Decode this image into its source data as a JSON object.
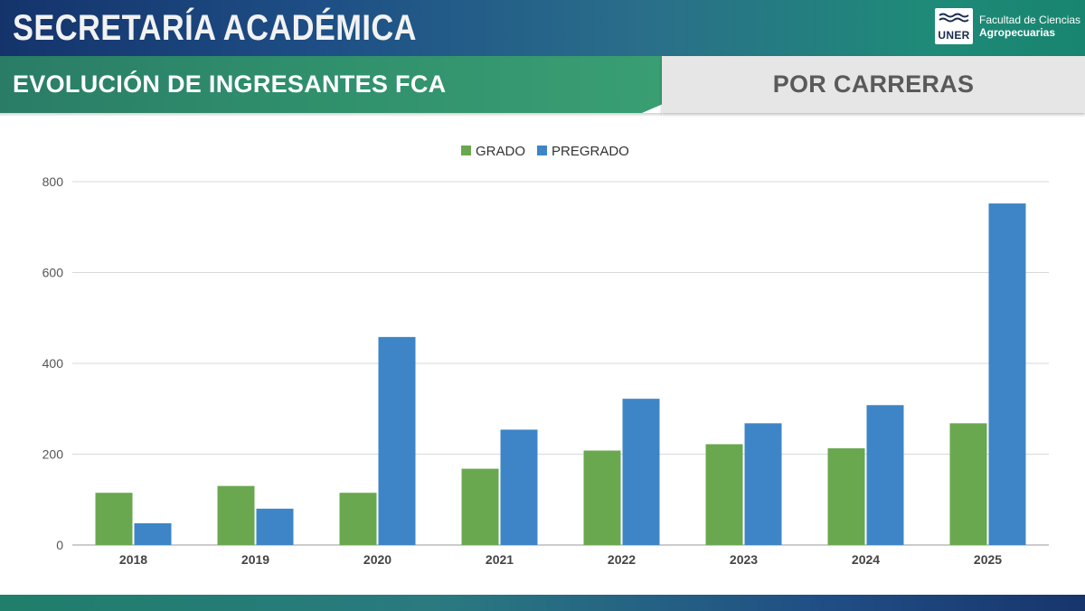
{
  "header": {
    "title": "SECRETARÍA ACADÉMICA",
    "logo_word": "UNER",
    "logo_line1": "Facultad de Ciencias",
    "logo_line2": "Agropecuarias"
  },
  "subheader": {
    "title": "EVOLUCIÓN DE INGRESANTES FCA",
    "section": "POR CARRERAS"
  },
  "colors": {
    "grado": "#6aa84f",
    "pregrado": "#3d85c6"
  },
  "chart_data": {
    "type": "bar",
    "categories": [
      "2018",
      "2019",
      "2020",
      "2021",
      "2022",
      "2023",
      "2024",
      "2025"
    ],
    "series": [
      {
        "name": "GRADO",
        "values": [
          115,
          130,
          115,
          168,
          208,
          222,
          213,
          268
        ]
      },
      {
        "name": "PREGRADO",
        "values": [
          48,
          80,
          458,
          254,
          322,
          268,
          308,
          752
        ]
      }
    ],
    "ylim": [
      0,
      800
    ],
    "yticks": [
      0,
      200,
      400,
      600,
      800
    ],
    "grid": true,
    "legend_position": "top-center"
  }
}
